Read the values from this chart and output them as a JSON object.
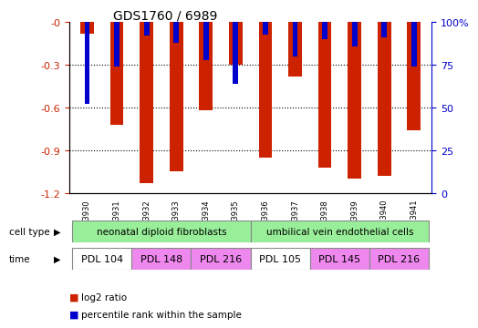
{
  "title": "GDS1760 / 6989",
  "samples": [
    "GSM33930",
    "GSM33931",
    "GSM33932",
    "GSM33933",
    "GSM33934",
    "GSM33935",
    "GSM33936",
    "GSM33937",
    "GSM33938",
    "GSM33939",
    "GSM33940",
    "GSM33941"
  ],
  "log2_ratio": [
    -0.08,
    -0.72,
    -1.13,
    -1.05,
    -0.62,
    -0.3,
    -0.95,
    -0.38,
    -1.02,
    -1.1,
    -1.08,
    -0.76
  ],
  "percentile_rank": [
    48,
    26,
    8,
    12,
    22,
    36,
    7,
    20,
    10,
    14,
    9,
    26
  ],
  "ylim_left": [
    -1.2,
    0.0
  ],
  "ylim_right": [
    0,
    100
  ],
  "yticks_left": [
    -1.2,
    -0.9,
    -0.6,
    -0.3,
    0.0
  ],
  "yticks_right": [
    0,
    25,
    50,
    75,
    100
  ],
  "left_tick_labels": [
    "-1.2",
    "-0.9",
    "-0.6",
    "-0.3",
    "-0"
  ],
  "right_tick_labels": [
    "0",
    "25",
    "50",
    "75",
    "100%"
  ],
  "bar_color": "#cc2200",
  "percentile_color": "#0000cc",
  "bar_width": 0.45,
  "pct_bar_width": 0.18,
  "cell_type_label": "cell type",
  "time_label": "time",
  "cell_types": [
    {
      "label": "neonatal diploid fibroblasts",
      "start": 0,
      "end": 6,
      "color": "#99ee99"
    },
    {
      "label": "umbilical vein endothelial cells",
      "start": 6,
      "end": 12,
      "color": "#99ee99"
    }
  ],
  "time_groups": [
    {
      "label": "PDL 104",
      "start": 0,
      "end": 2,
      "color": "#ffffff"
    },
    {
      "label": "PDL 148",
      "start": 2,
      "end": 4,
      "color": "#ee88ee"
    },
    {
      "label": "PDL 216",
      "start": 4,
      "end": 6,
      "color": "#ee88ee"
    },
    {
      "label": "PDL 105",
      "start": 6,
      "end": 8,
      "color": "#ffffff"
    },
    {
      "label": "PDL 145",
      "start": 8,
      "end": 10,
      "color": "#ee88ee"
    },
    {
      "label": "PDL 216",
      "start": 10,
      "end": 12,
      "color": "#ee88ee"
    }
  ],
  "legend_items": [
    {
      "label": "log2 ratio",
      "color": "#cc2200"
    },
    {
      "label": "percentile rank within the sample",
      "color": "#0000cc"
    }
  ],
  "bg_color": "#ffffff",
  "axis_label_color_left": "#cc2200",
  "axis_label_color_right": "#0000cc",
  "grid_lines": [
    -0.3,
    -0.6,
    -0.9
  ]
}
